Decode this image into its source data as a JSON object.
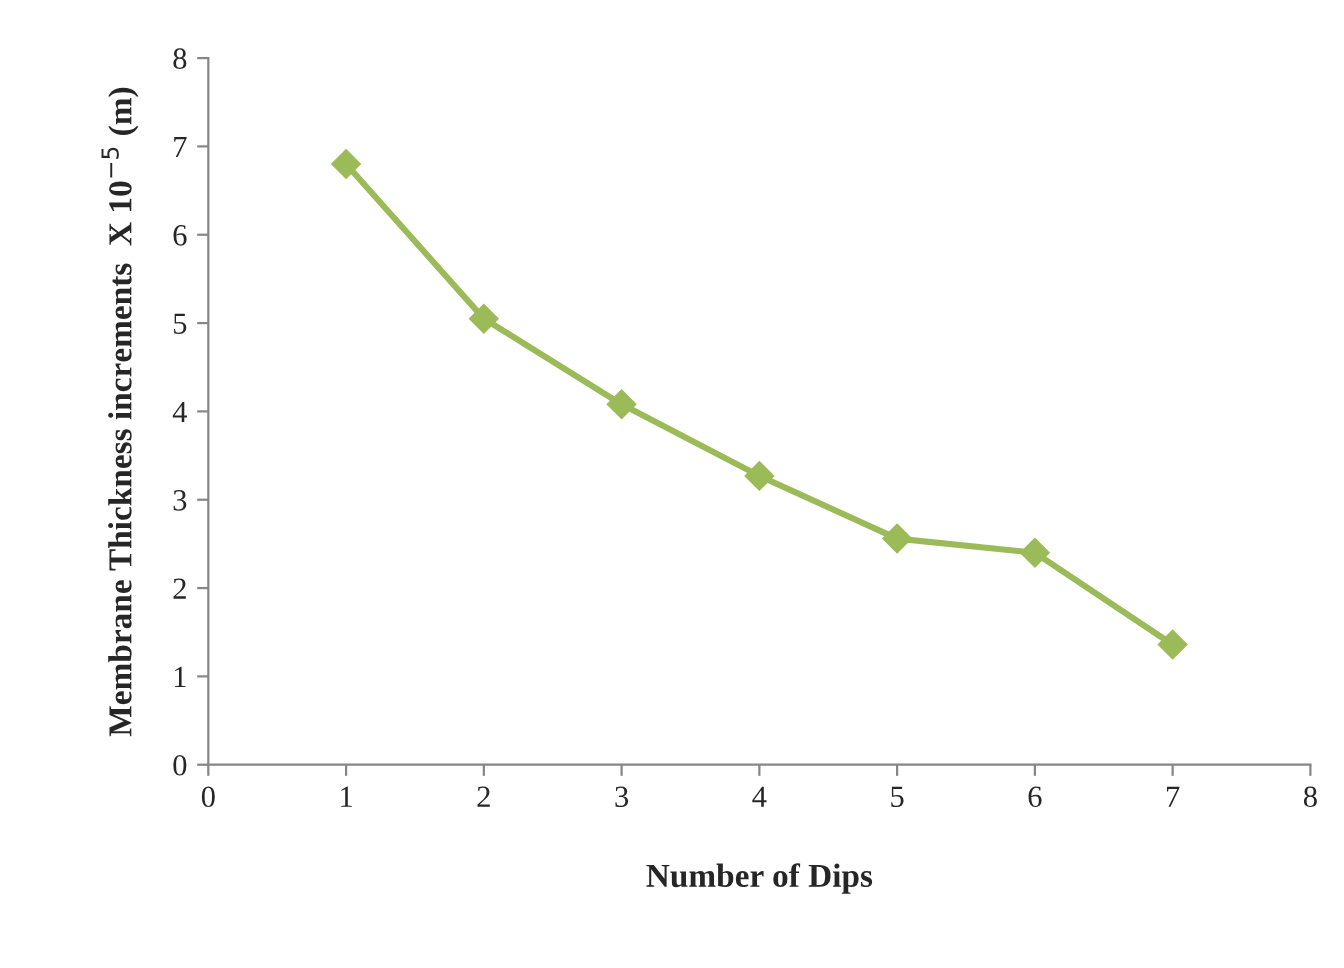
{
  "chart_data": {
    "type": "line",
    "xlabel": "Number of Dips",
    "ylabel": "Membrane Thickness increments  X 10$^{−5}$ (m)",
    "x": [
      1,
      2,
      3,
      4,
      5,
      6,
      7
    ],
    "series": [
      {
        "color": "#9bbb59",
        "values": [
          6.8,
          5.05,
          4.08,
          3.27,
          2.56,
          2.4,
          1.36
        ]
      }
    ],
    "xlim": [
      0,
      8
    ],
    "xticks": [
      0,
      1,
      2,
      3,
      4,
      5,
      6,
      7,
      8
    ],
    "ylim": [
      0,
      8
    ],
    "yticks": [
      0,
      1,
      2,
      3,
      4,
      5,
      6,
      7,
      8
    ],
    "grid": false,
    "marker": "diamond",
    "line_style": "solid"
  }
}
